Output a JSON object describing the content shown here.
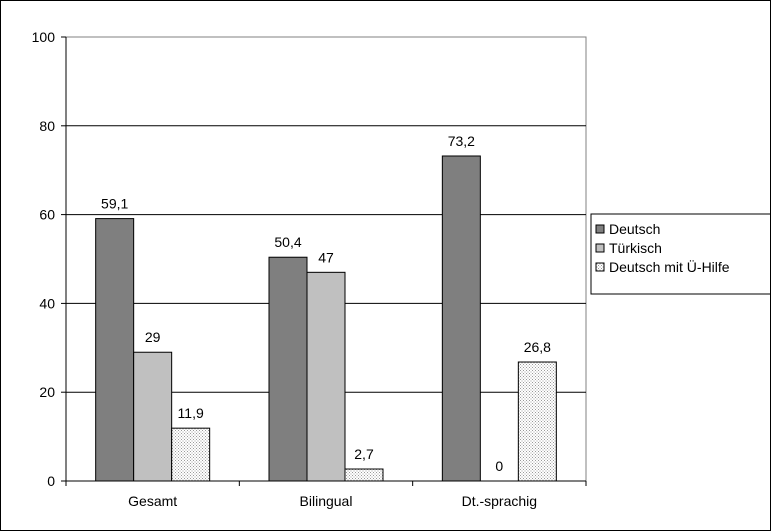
{
  "chart_data": {
    "type": "bar",
    "categories": [
      "Gesamt",
      "Bilingual",
      "Dt.-sprachig"
    ],
    "series": [
      {
        "name": "Deutsch",
        "values": [
          59.1,
          50.4,
          73.2
        ],
        "labels": [
          "59,1",
          "50,4",
          "73,2"
        ],
        "color": "#7f7f7f",
        "pattern": "solid"
      },
      {
        "name": "Türkisch",
        "values": [
          29,
          47,
          0
        ],
        "labels": [
          "29",
          "47",
          "0"
        ],
        "color": "#c0c0c0",
        "pattern": "solid"
      },
      {
        "name": "Deutsch mit Ü-Hilfe",
        "values": [
          11.9,
          2.7,
          26.8
        ],
        "labels": [
          "11,9",
          "2,7",
          "26,8"
        ],
        "color": "#e8e8e8",
        "pattern": "dotted"
      }
    ],
    "ylim": [
      0,
      100
    ],
    "yticks": [
      "0",
      "20",
      "40",
      "60",
      "80",
      "100"
    ],
    "grid": true,
    "legend_position": "right",
    "title": "",
    "xlabel": "",
    "ylabel": ""
  }
}
